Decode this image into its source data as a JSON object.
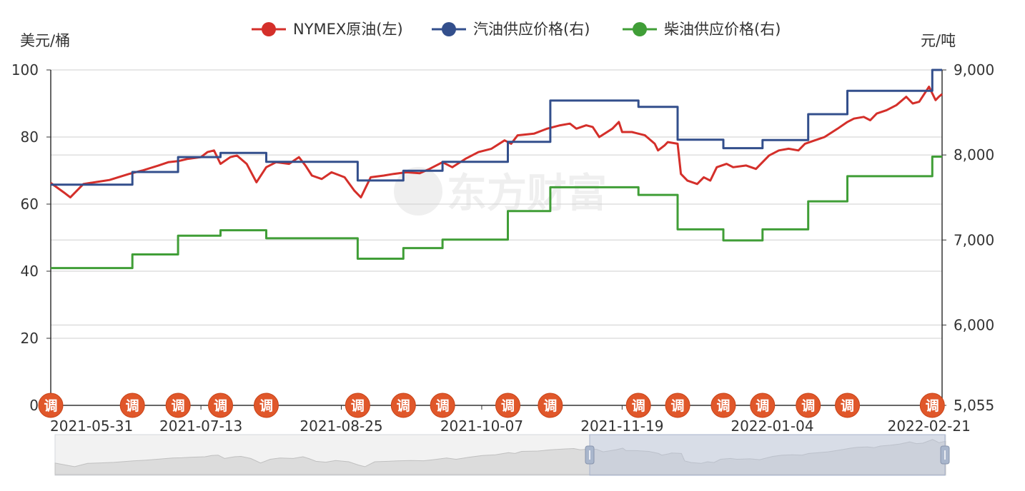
{
  "chart_data": {
    "type": "line",
    "watermark": "东方财富",
    "legend_position": "top-center",
    "grid": true,
    "y_left": {
      "unit": "美元/桶",
      "ylim": [
        0,
        100
      ],
      "ticks": [
        "0",
        "20",
        "40",
        "60",
        "80",
        "100"
      ]
    },
    "y_right": {
      "unit": "元/吨",
      "ylim": [
        5055,
        9000
      ],
      "ticks": [
        "5,055",
        "6,000",
        "7,000",
        "8,000",
        "9,000"
      ]
    },
    "x_range": [
      "2021-05-28",
      "2022-02-25"
    ],
    "x_ticks": [
      "2021-05-31",
      "2021-07-13",
      "2021-08-25",
      "2021-10-07",
      "2021-11-19",
      "2022-01-04",
      "2022-02-21"
    ],
    "adjust_marker_label": "调",
    "adjustment_dates": [
      "2021-05-28",
      "2021-06-22",
      "2021-07-06",
      "2021-07-19",
      "2021-08-02",
      "2021-08-30",
      "2021-09-13",
      "2021-09-25",
      "2021-10-15",
      "2021-10-28",
      "2021-11-24",
      "2021-12-06",
      "2021-12-20",
      "2022-01-01",
      "2022-01-15",
      "2022-01-27",
      "2022-02-22"
    ],
    "series": [
      {
        "name": "NYMEX原油(左)",
        "axis": "left",
        "color": "#d42f2a",
        "points": [
          [
            "2021-05-28",
            66.3
          ],
          [
            "2021-06-01",
            63.5
          ],
          [
            "2021-06-03",
            62.0
          ],
          [
            "2021-06-07",
            66.0
          ],
          [
            "2021-06-11",
            66.6
          ],
          [
            "2021-06-15",
            67.2
          ],
          [
            "2021-06-21",
            69.0
          ],
          [
            "2021-06-25",
            70.0
          ],
          [
            "2021-06-30",
            71.5
          ],
          [
            "2021-07-03",
            72.5
          ],
          [
            "2021-07-06",
            72.8
          ],
          [
            "2021-07-09",
            73.5
          ],
          [
            "2021-07-13",
            74.0
          ],
          [
            "2021-07-15",
            75.5
          ],
          [
            "2021-07-17",
            76.0
          ],
          [
            "2021-07-19",
            72.0
          ],
          [
            "2021-07-22",
            74.0
          ],
          [
            "2021-07-24",
            74.5
          ],
          [
            "2021-07-27",
            72.0
          ],
          [
            "2021-07-30",
            66.5
          ],
          [
            "2021-08-02",
            71.0
          ],
          [
            "2021-08-05",
            72.5
          ],
          [
            "2021-08-09",
            72.0
          ],
          [
            "2021-08-12",
            74.0
          ],
          [
            "2021-08-14",
            71.5
          ],
          [
            "2021-08-16",
            68.5
          ],
          [
            "2021-08-19",
            67.5
          ],
          [
            "2021-08-22",
            69.5
          ],
          [
            "2021-08-26",
            68.0
          ],
          [
            "2021-08-29",
            64.0
          ],
          [
            "2021-08-31",
            62.0
          ],
          [
            "2021-09-03",
            68.0
          ],
          [
            "2021-09-07",
            68.5
          ],
          [
            "2021-09-10",
            69.0
          ],
          [
            "2021-09-14",
            69.5
          ],
          [
            "2021-09-18",
            69.2
          ],
          [
            "2021-09-21",
            70.5
          ],
          [
            "2021-09-25",
            72.5
          ],
          [
            "2021-09-28",
            71.0
          ],
          [
            "2021-10-02",
            73.5
          ],
          [
            "2021-10-06",
            75.5
          ],
          [
            "2021-10-10",
            76.5
          ],
          [
            "2021-10-14",
            79.0
          ],
          [
            "2021-10-16",
            78.0
          ],
          [
            "2021-10-18",
            80.5
          ],
          [
            "2021-10-23",
            81.0
          ],
          [
            "2021-10-27",
            82.5
          ],
          [
            "2021-10-31",
            83.5
          ],
          [
            "2021-11-03",
            84.0
          ],
          [
            "2021-11-05",
            82.5
          ],
          [
            "2021-11-08",
            83.5
          ],
          [
            "2021-11-10",
            83.0
          ],
          [
            "2021-11-12",
            80.0
          ],
          [
            "2021-11-16",
            82.5
          ],
          [
            "2021-11-18",
            84.5
          ],
          [
            "2021-11-19",
            81.5
          ],
          [
            "2021-11-22",
            81.5
          ],
          [
            "2021-11-26",
            80.5
          ],
          [
            "2021-11-29",
            78.0
          ],
          [
            "2021-11-30",
            76.0
          ],
          [
            "2021-12-02",
            77.5
          ],
          [
            "2021-12-03",
            78.5
          ],
          [
            "2021-12-06",
            78.0
          ],
          [
            "2021-12-07",
            69.0
          ],
          [
            "2021-12-09",
            67.0
          ],
          [
            "2021-12-12",
            66.0
          ],
          [
            "2021-12-14",
            68.0
          ],
          [
            "2021-12-16",
            67.0
          ],
          [
            "2021-12-18",
            71.0
          ],
          [
            "2021-12-21",
            72.0
          ],
          [
            "2021-12-23",
            71.0
          ],
          [
            "2021-12-27",
            71.5
          ],
          [
            "2021-12-30",
            70.5
          ],
          [
            "2022-01-03",
            74.5
          ],
          [
            "2022-01-06",
            76.0
          ],
          [
            "2022-01-09",
            76.5
          ],
          [
            "2022-01-12",
            76.0
          ],
          [
            "2022-01-14",
            78.0
          ],
          [
            "2022-01-17",
            79.0
          ],
          [
            "2022-01-20",
            80.0
          ],
          [
            "2022-01-24",
            82.5
          ],
          [
            "2022-01-27",
            84.5
          ],
          [
            "2022-01-29",
            85.5
          ],
          [
            "2022-02-01",
            86.0
          ],
          [
            "2022-02-03",
            85.0
          ],
          [
            "2022-02-05",
            87.0
          ],
          [
            "2022-02-08",
            88.0
          ],
          [
            "2022-02-11",
            89.5
          ],
          [
            "2022-02-14",
            92.0
          ],
          [
            "2022-02-16",
            90.0
          ],
          [
            "2022-02-18",
            90.5
          ],
          [
            "2022-02-21",
            95.0
          ],
          [
            "2022-02-22",
            93.0
          ],
          [
            "2022-02-23",
            91.0
          ],
          [
            "2022-02-24",
            92.0
          ],
          [
            "2022-02-25",
            92.8
          ]
        ]
      },
      {
        "name": "汽油供应价格(右)",
        "axis": "right",
        "color": "#334f8c",
        "step": true,
        "points": [
          [
            "2021-05-28",
            7650
          ],
          [
            "2021-06-22",
            7800
          ],
          [
            "2021-07-06",
            7975
          ],
          [
            "2021-07-19",
            8025
          ],
          [
            "2021-08-02",
            7920
          ],
          [
            "2021-08-30",
            7700
          ],
          [
            "2021-09-13",
            7815
          ],
          [
            "2021-09-25",
            7920
          ],
          [
            "2021-10-15",
            8155
          ],
          [
            "2021-10-28",
            8640
          ],
          [
            "2021-11-24",
            8565
          ],
          [
            "2021-12-06",
            8180
          ],
          [
            "2021-12-20",
            8080
          ],
          [
            "2022-01-01",
            8175
          ],
          [
            "2022-01-15",
            8480
          ],
          [
            "2022-01-27",
            8755
          ],
          [
            "2022-02-22",
            9000
          ],
          [
            "2022-02-25",
            9000
          ]
        ]
      },
      {
        "name": "柴油供应价格(右)",
        "axis": "right",
        "color": "#409e37",
        "step": true,
        "points": [
          [
            "2021-05-28",
            6670
          ],
          [
            "2021-06-22",
            6830
          ],
          [
            "2021-07-06",
            7050
          ],
          [
            "2021-07-19",
            7115
          ],
          [
            "2021-08-02",
            7020
          ],
          [
            "2021-08-30",
            6780
          ],
          [
            "2021-09-13",
            6905
          ],
          [
            "2021-09-25",
            7005
          ],
          [
            "2021-10-15",
            7340
          ],
          [
            "2021-10-28",
            7620
          ],
          [
            "2021-11-24",
            7530
          ],
          [
            "2021-12-06",
            7125
          ],
          [
            "2021-12-20",
            6995
          ],
          [
            "2022-01-01",
            7125
          ],
          [
            "2022-01-15",
            7455
          ],
          [
            "2022-01-27",
            7750
          ],
          [
            "2022-02-22",
            7980
          ],
          [
            "2022-02-25",
            7980
          ]
        ]
      }
    ]
  }
}
